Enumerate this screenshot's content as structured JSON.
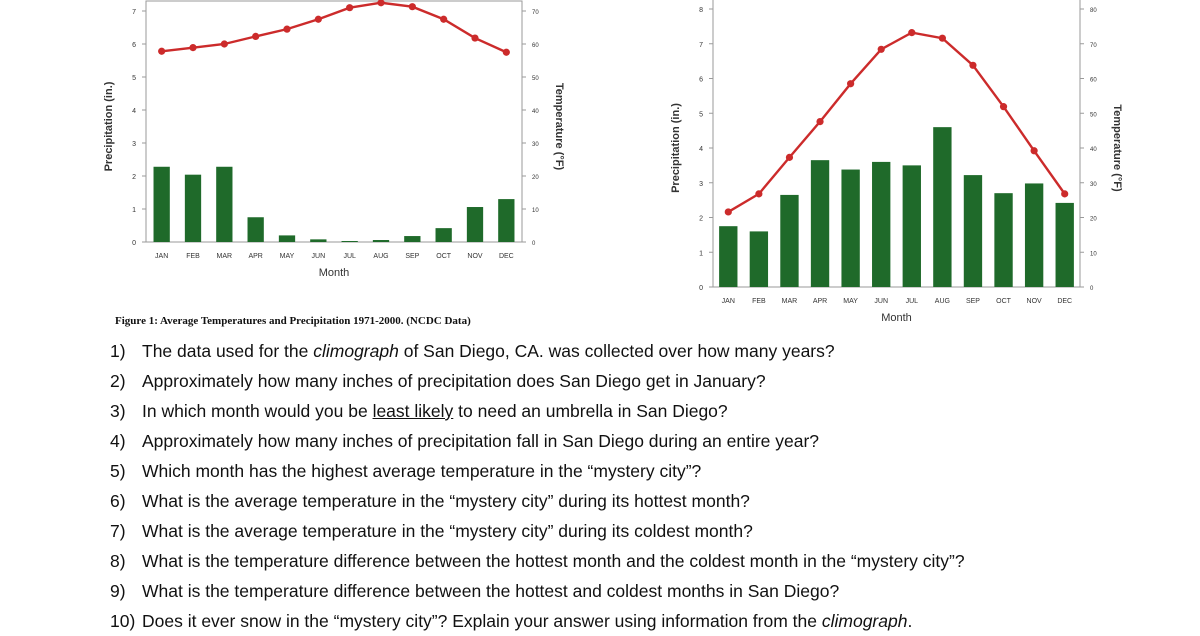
{
  "colors": {
    "bar": "#1f6a2a",
    "line": "#cc2b2b",
    "axis": "#9a9a9a"
  },
  "chart_data": [
    {
      "type": "bar",
      "categories": [
        "JAN",
        "FEB",
        "MAR",
        "APR",
        "MAY",
        "JUN",
        "JUL",
        "AUG",
        "SEP",
        "OCT",
        "NOV",
        "DEC"
      ],
      "series": [
        {
          "values": [
            2.28,
            2.04,
            2.28,
            0.75,
            0.2,
            0.08,
            0.03,
            0.06,
            0.18,
            0.42,
            1.06,
            1.3
          ]
        },
        {
          "values": [
            57.8,
            58.9,
            60,
            62.3,
            64.5,
            67.5,
            71,
            72.5,
            71.3,
            67.5,
            61.8,
            57.5
          ]
        }
      ],
      "xlabel": "Month",
      "ylabel": "Precipitation (in.)",
      "y2label": "Temperature (°F)",
      "ylim": [
        0,
        7
      ],
      "y2lim": [
        0,
        70
      ],
      "yticks": [
        "0",
        "1",
        "2",
        "3",
        "4",
        "5",
        "6",
        "7"
      ],
      "y2ticks": [
        "0",
        "10",
        "20",
        "30",
        "40",
        "50",
        "60",
        "70"
      ],
      "grid": false
    },
    {
      "type": "bar",
      "categories": [
        "JAN",
        "FEB",
        "MAR",
        "APR",
        "MAY",
        "JUN",
        "JUL",
        "AUG",
        "SEP",
        "OCT",
        "NOV",
        "DEC"
      ],
      "series": [
        {
          "values": [
            1.75,
            1.6,
            2.65,
            3.65,
            3.38,
            3.6,
            3.5,
            4.6,
            3.22,
            2.7,
            2.98,
            2.42
          ]
        },
        {
          "values": [
            21.6,
            26.8,
            37.3,
            47.6,
            58.5,
            68.4,
            73.2,
            71.6,
            63.8,
            51.9,
            39.2,
            26.8
          ]
        }
      ],
      "xlabel": "Month",
      "ylabel": "Precipitation (in.)",
      "y2label": "Temperature (°F)",
      "ylim": [
        0,
        8
      ],
      "y2lim": [
        0,
        80
      ],
      "yticks": [
        "0",
        "1",
        "2",
        "3",
        "4",
        "5",
        "6",
        "7",
        "8"
      ],
      "y2ticks": [
        "0",
        "10",
        "20",
        "30",
        "40",
        "50",
        "60",
        "70",
        "80"
      ],
      "grid": false
    }
  ],
  "caption": "Figure 1: Average Temperatures and Precipitation 1971-2000. (NCDC Data)",
  "questions": [
    {
      "num": "1)",
      "parts": [
        {
          "t": "The data used for the "
        },
        {
          "t": "climograph",
          "s": "em"
        },
        {
          "t": " of San Diego, CA. was collected over how many years?"
        }
      ]
    },
    {
      "num": "2)",
      "parts": [
        {
          "t": "Approximately how many inches of precipitation does San Diego get in January?"
        }
      ]
    },
    {
      "num": "3)",
      "parts": [
        {
          "t": "In which month would you be "
        },
        {
          "t": "least likely",
          "s": "u"
        },
        {
          "t": " to need an umbrella in San Diego?"
        }
      ]
    },
    {
      "num": "4)",
      "parts": [
        {
          "t": "Approximately how many inches of precipitation fall in San Diego during an entire year?"
        }
      ]
    },
    {
      "num": "5)",
      "parts": [
        {
          "t": "Which month has the highest average temperature in the “mystery city”?"
        }
      ]
    },
    {
      "num": "6)",
      "parts": [
        {
          "t": "What is the average temperature in the “mystery city” during its hottest month?"
        }
      ]
    },
    {
      "num": "7)",
      "parts": [
        {
          "t": "What is the average temperature in the “mystery city” during its coldest month?"
        }
      ]
    },
    {
      "num": "8)",
      "parts": [
        {
          "t": "What is the temperature difference between the hottest month and the coldest month in the “mystery city”?"
        }
      ]
    },
    {
      "num": "9)",
      "parts": [
        {
          "t": "What is the temperature difference between the hottest and coldest months in San Diego?"
        }
      ]
    },
    {
      "num": "10)",
      "parts": [
        {
          "t": "Does it ever snow in the “mystery city”?  Explain your answer using information from the "
        },
        {
          "t": "climograph",
          "s": "em"
        },
        {
          "t": "."
        }
      ]
    }
  ]
}
